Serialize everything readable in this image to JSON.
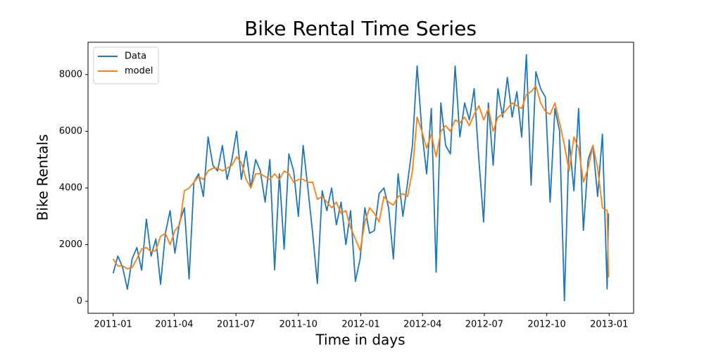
{
  "chart_data": {
    "type": "line",
    "title": "Bike Rental Time Series",
    "xlabel": "Time in days",
    "ylabel": "Bike Rentals",
    "x": [
      0,
      7,
      14,
      21,
      28,
      35,
      42,
      49,
      56,
      63,
      70,
      77,
      84,
      91,
      98,
      105,
      112,
      119,
      126,
      133,
      140,
      147,
      154,
      161,
      168,
      175,
      182,
      189,
      196,
      203,
      210,
      217,
      224,
      231,
      238,
      245,
      252,
      259,
      266,
      273,
      280,
      287,
      294,
      301,
      308,
      315,
      322,
      329,
      336,
      343,
      350,
      357,
      364,
      371,
      378,
      385,
      392,
      399,
      406,
      413,
      420,
      427,
      434,
      441,
      448,
      455,
      462,
      469,
      476,
      483,
      490,
      497,
      504,
      511,
      518,
      525,
      532,
      539,
      546,
      553,
      560,
      567,
      574,
      581,
      588,
      595,
      602,
      609,
      616,
      623,
      630,
      637,
      644,
      651,
      658,
      665,
      672,
      679,
      686,
      693,
      700,
      707,
      714,
      721,
      728,
      730
    ],
    "series": [
      {
        "name": "Data",
        "color": "#1f77b4",
        "values": [
          985,
          1600,
          1200,
          431,
          1500,
          1900,
          1100,
          2900,
          1600,
          2200,
          600,
          2400,
          3200,
          1700,
          2800,
          3300,
          795,
          4200,
          4500,
          3700,
          5800,
          4800,
          4600,
          5500,
          4300,
          5000,
          6000,
          4300,
          5300,
          4000,
          5000,
          4600,
          3500,
          5000,
          1115,
          4500,
          1842,
          5200,
          4600,
          3000,
          5500,
          4000,
          2400,
          627,
          3900,
          3200,
          4000,
          2700,
          3500,
          2000,
          3200,
          705,
          1500,
          3300,
          2400,
          2500,
          3800,
          4000,
          3300,
          1500,
          4500,
          3000,
          4200,
          5500,
          8300,
          6000,
          4500,
          6800,
          1027,
          7000,
          5500,
          5200,
          8300,
          5800,
          7000,
          6400,
          7500,
          5000,
          2800,
          7000,
          4800,
          7500,
          6500,
          7900,
          6500,
          7400,
          5800,
          8700,
          4100,
          8100,
          7500,
          7200,
          3500,
          6800,
          6000,
          22,
          5700,
          3900,
          6800,
          2500,
          5000,
          5500,
          3700,
          5900,
          441,
          3100
        ]
      },
      {
        "name": "model",
        "color": "#ff7f0e",
        "values": [
          1500,
          1250,
          1250,
          1150,
          1200,
          1500,
          1850,
          1900,
          1750,
          1800,
          2300,
          2400,
          2000,
          2500,
          2700,
          3900,
          4000,
          4200,
          4400,
          4300,
          4600,
          4700,
          4700,
          4600,
          4700,
          4800,
          5100,
          4900,
          4300,
          4000,
          4500,
          4500,
          4400,
          4300,
          4500,
          4300,
          4600,
          4500,
          4200,
          4300,
          4300,
          4200,
          4200,
          3600,
          3700,
          3500,
          3300,
          3500,
          3100,
          3200,
          2600,
          2200,
          1800,
          2800,
          3300,
          3100,
          2800,
          3700,
          3500,
          3400,
          3700,
          3800,
          3700,
          4600,
          6500,
          6000,
          5400,
          5900,
          5100,
          6000,
          6200,
          6000,
          6400,
          6300,
          6500,
          6200,
          6600,
          6900,
          6400,
          6800,
          6000,
          6500,
          6600,
          6800,
          7000,
          6900,
          6800,
          7300,
          7400,
          7600,
          7000,
          6700,
          6600,
          7000,
          6300,
          5500,
          4600,
          5800,
          5400,
          4200,
          4700,
          5500,
          4700,
          3300,
          3200,
          850
        ]
      }
    ],
    "xlim": [
      -37,
      767
    ],
    "xticks": [
      {
        "value": 0,
        "label": "2011-01"
      },
      {
        "value": 90,
        "label": "2011-04"
      },
      {
        "value": 181,
        "label": "2011-07"
      },
      {
        "value": 273,
        "label": "2011-10"
      },
      {
        "value": 365,
        "label": "2012-01"
      },
      {
        "value": 456,
        "label": "2012-04"
      },
      {
        "value": 547,
        "label": "2012-07"
      },
      {
        "value": 639,
        "label": "2012-10"
      },
      {
        "value": 731,
        "label": "2013-01"
      }
    ],
    "ylim": [
      -420,
      9140
    ],
    "yticks": [
      0,
      2000,
      4000,
      6000,
      8000
    ],
    "grid": false,
    "legend": "upper left"
  }
}
